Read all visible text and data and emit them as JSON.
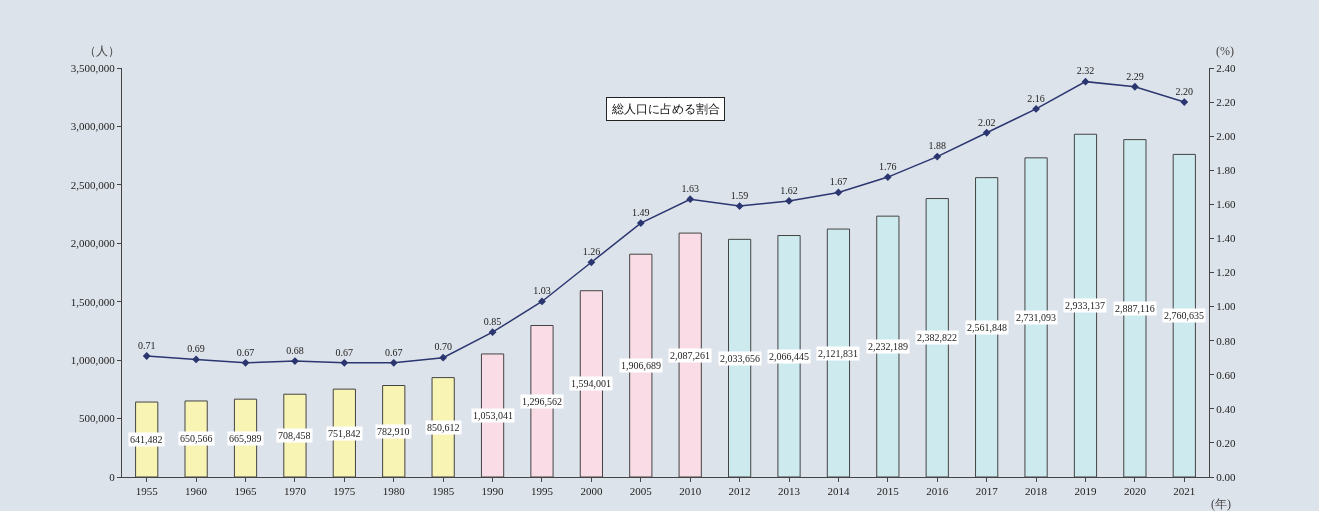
{
  "chart_data": {
    "type": "bar",
    "categories": [
      "1955",
      "1960",
      "1965",
      "1970",
      "1975",
      "1980",
      "1985",
      "1990",
      "1995",
      "2000",
      "2005",
      "2010",
      "2012",
      "2013",
      "2014",
      "2015",
      "2016",
      "2017",
      "2018",
      "2019",
      "2020",
      "2021"
    ],
    "ylabel": "（人）",
    "y2label": "(%)",
    "xlabel": "(年)",
    "annotations": [
      "総人口に占める割合"
    ],
    "series": [
      {
        "colors": [
          "#f8f4b4",
          "#f8f4b4",
          "#f8f4b4",
          "#f8f4b4",
          "#f8f4b4",
          "#f8f4b4",
          "#f8f4b4",
          "#fadce6",
          "#fadce6",
          "#fadce6",
          "#fadce6",
          "#fadce6",
          "#cdeaee",
          "#cdeaee",
          "#cdeaee",
          "#cdeaee",
          "#cdeaee",
          "#cdeaee",
          "#cdeaee",
          "#cdeaee",
          "#cdeaee",
          "#cdeaee"
        ],
        "values": [
          641482,
          650566,
          665989,
          708458,
          751842,
          782910,
          850612,
          1053041,
          1296562,
          1594001,
          1906689,
          2087261,
          2033656,
          2066445,
          2121831,
          2232189,
          2382822,
          2561848,
          2731093,
          2933137,
          2887116,
          2760635
        ],
        "value_labels": [
          "641,482",
          "650,566",
          "665,989",
          "708,458",
          "751,842",
          "782,910",
          "850,612",
          "1,053,041",
          "1,296,562",
          "1,594,001",
          "1,906,689",
          "2,087,261",
          "2,033,656",
          "2,066,445",
          "2,121,831",
          "2,232,189",
          "2,382,822",
          "2,561,848",
          "2,731,093",
          "2,933,137",
          "2,887,116",
          "2,760,635"
        ]
      },
      {
        "type": "line",
        "axis": "y2",
        "color": "#2b3670",
        "values": [
          0.71,
          0.69,
          0.67,
          0.68,
          0.67,
          0.67,
          0.7,
          0.85,
          1.03,
          1.26,
          1.49,
          1.63,
          1.59,
          1.62,
          1.67,
          1.76,
          1.88,
          2.02,
          2.16,
          2.32,
          2.29,
          2.2
        ],
        "value_labels": [
          "0.71",
          "0.69",
          "0.67",
          "0.68",
          "0.67",
          "0.67",
          "0.70",
          "0.85",
          "1.03",
          "1.26",
          "1.49",
          "1.63",
          "1.59",
          "1.62",
          "1.67",
          "1.76",
          "1.88",
          "2.02",
          "2.16",
          "2.32",
          "2.29",
          "2.20"
        ]
      }
    ],
    "ylim": [
      0,
      3500000
    ],
    "yticks": [
      0,
      {
        "value": 500000,
        "label": "500,000"
      },
      {
        "value": 1000000,
        "label": "1,000,000"
      },
      {
        "value": 1500000,
        "label": "1,500,000"
      },
      {
        "value": 2000000,
        "label": "2,000,000"
      },
      {
        "value": 2500000,
        "label": "2,500,000"
      },
      {
        "value": 3000000,
        "label": "3,000,000"
      },
      {
        "value": 3500000,
        "label": "3,500,000"
      }
    ],
    "y2lim": [
      0,
      2.4
    ],
    "y2ticks": [
      {
        "value": 0,
        "label": "0.00"
      },
      {
        "value": 0.2,
        "label": "0.20"
      },
      {
        "value": 0.4,
        "label": "0.40"
      },
      {
        "value": 0.6,
        "label": "0.60"
      },
      {
        "value": 0.8,
        "label": "0.80"
      },
      {
        "value": 1,
        "label": "1.00"
      },
      {
        "value": 1.2,
        "label": "1.20"
      },
      {
        "value": 1.4,
        "label": "1.40"
      },
      {
        "value": 1.6,
        "label": "1.60"
      },
      {
        "value": 1.8,
        "label": "1.80"
      },
      {
        "value": 2,
        "label": "2.00"
      },
      {
        "value": 2.2,
        "label": "2.20"
      },
      {
        "value": 2.4,
        "label": "2.40"
      }
    ],
    "grid": false,
    "legend": false,
    "marker": "diamond",
    "line_style": "solid"
  }
}
